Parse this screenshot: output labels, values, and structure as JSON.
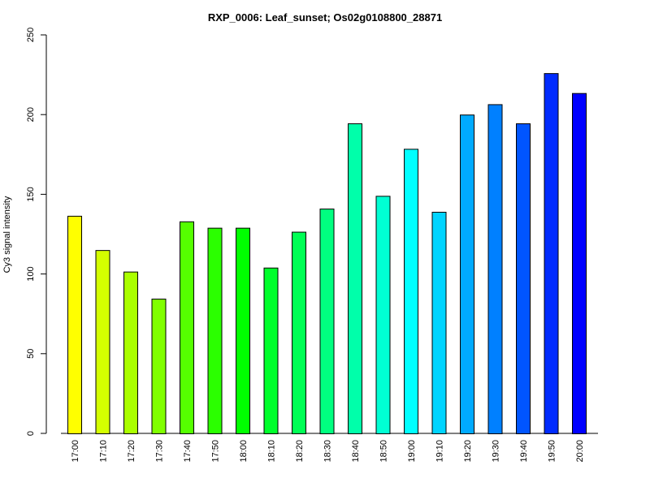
{
  "chart_data": {
    "type": "bar",
    "title": "RXP_0006: Leaf_sunset; Os02g0108800_28871",
    "xlabel": "",
    "ylabel": "Cy3 signal intensity",
    "ylim": [
      0,
      250
    ],
    "yticks": [
      0,
      50,
      100,
      150,
      200,
      250
    ],
    "grid": false,
    "categories": [
      "17:00",
      "17:10",
      "17:20",
      "17:30",
      "17:40",
      "17:50",
      "18:00",
      "18:10",
      "18:20",
      "18:30",
      "18:40",
      "18:50",
      "19:00",
      "19:10",
      "19:20",
      "19:30",
      "19:40",
      "19:50",
      "20:00"
    ],
    "values": [
      136.5,
      115,
      101.5,
      84.5,
      133,
      129,
      129,
      104,
      126.5,
      141,
      194.5,
      149,
      178.5,
      139,
      200,
      206.5,
      194.5,
      226,
      213.5
    ],
    "colors": [
      "#FFFF00",
      "#D4FF00",
      "#AAFF00",
      "#80FF00",
      "#55FF00",
      "#2BFF00",
      "#00FF00",
      "#00FF2B",
      "#00FF55",
      "#00FF80",
      "#00FFAA",
      "#00FFD4",
      "#00FFFF",
      "#00D4FF",
      "#00AAFF",
      "#0080FF",
      "#0055FF",
      "#002BFF",
      "#0000FF"
    ]
  }
}
